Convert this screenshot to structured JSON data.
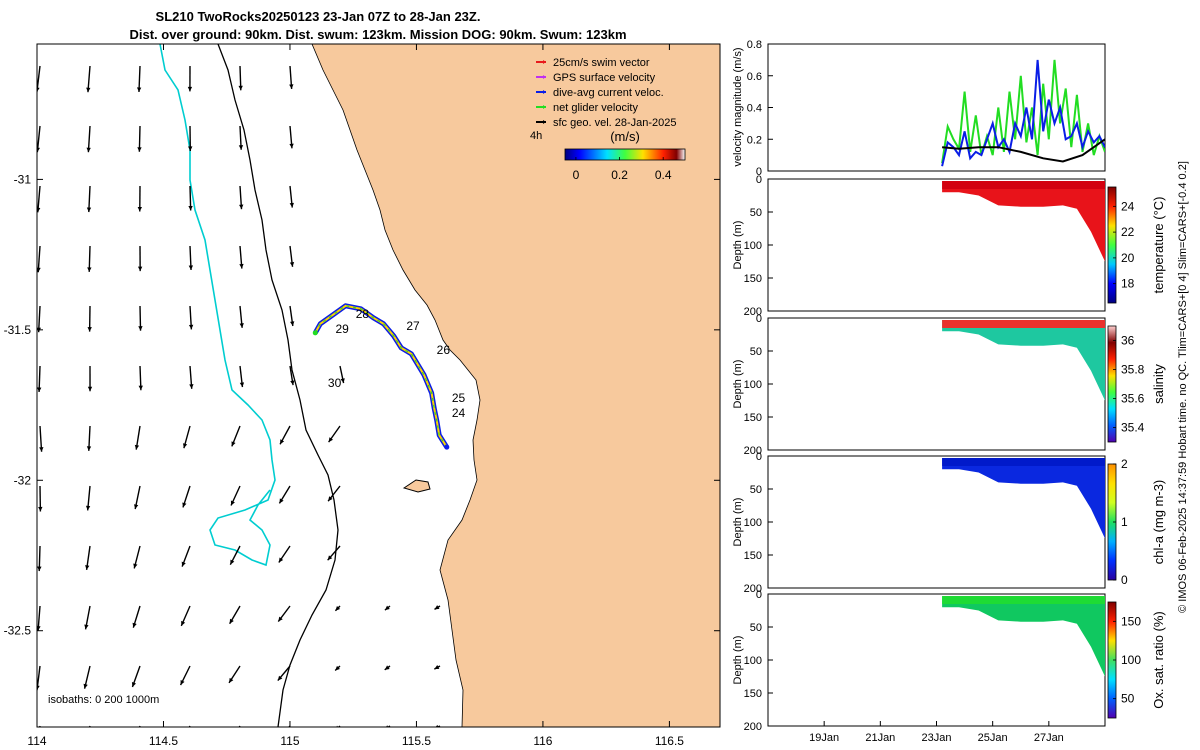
{
  "title": {
    "line1": "SL210 TwoRocks20250123 23-Jan 07Z to 28-Jan 23Z.",
    "line2": "Dist. over ground: 90km. Dist. swum: 123km. Mission DOG: 90km. Swum: 123km"
  },
  "side_caption": "© IMOS 06-Feb-2025 14:37:59 Hobart time. no QC. Tlim=CARS+[0 4] Slim=CARS+[-0.4 0.2]",
  "colors": {
    "land": "#f7c99d",
    "shelf_isobath": "#00cdd0",
    "swim_vector": "#e8191c",
    "gps_surface": "#c030f0",
    "dive_avg": "#0a1ee6",
    "net_glider": "#22dd22",
    "geo_vel": "#000000"
  },
  "chart_data": [
    {
      "type": "map",
      "name": "glider track map",
      "xlim": [
        114.0,
        116.7
      ],
      "ylim": [
        -32.82,
        -30.55
      ],
      "x_ticks": [
        114,
        114.5,
        115,
        115.5,
        116,
        116.5
      ],
      "x_tick_labels": [
        "114",
        "114.5",
        "115",
        "115.5",
        "116",
        "116.5"
      ],
      "y_ticks": [
        -31,
        -31.5,
        -32,
        -32.5
      ],
      "y_tick_labels": [
        "-31",
        "-31.5",
        "-32",
        "-32.5"
      ],
      "legend": {
        "items": [
          "25cm/s swim vector",
          "GPS surface velocity",
          "dive-avg current veloc.",
          "net glider velocity",
          "sfc geo. vel. 28-Jan-2025"
        ],
        "interval": "4h",
        "colorbar_title": "(m/s)",
        "colorbar_ticks": [
          "0",
          "0.2",
          "0.4"
        ],
        "colorbar_range": [
          -0.05,
          0.5
        ]
      },
      "isobath_label": "isobaths: 0   200  1000m",
      "day_labels": [
        {
          "text": "24",
          "lon": 115.64,
          "lat": -31.79
        },
        {
          "text": "25",
          "lon": 115.64,
          "lat": -31.74
        },
        {
          "text": "26",
          "lon": 115.58,
          "lat": -31.58
        },
        {
          "text": "27",
          "lon": 115.46,
          "lat": -31.5
        },
        {
          "text": "28",
          "lon": 115.26,
          "lat": -31.46
        },
        {
          "text": "29",
          "lon": 115.18,
          "lat": -31.51
        },
        {
          "text": "30",
          "lon": 115.15,
          "lat": -31.69
        }
      ],
      "track": [
        [
          115.62,
          -31.89
        ],
        [
          115.59,
          -31.85
        ],
        [
          115.58,
          -31.8
        ],
        [
          115.57,
          -31.76
        ],
        [
          115.56,
          -31.71
        ],
        [
          115.53,
          -31.65
        ],
        [
          115.48,
          -31.58
        ],
        [
          115.44,
          -31.56
        ],
        [
          115.41,
          -31.52
        ],
        [
          115.37,
          -31.48
        ],
        [
          115.33,
          -31.46
        ],
        [
          115.28,
          -31.43
        ],
        [
          115.22,
          -31.42
        ],
        [
          115.17,
          -31.45
        ],
        [
          115.12,
          -31.48
        ],
        [
          115.1,
          -31.51
        ]
      ]
    },
    {
      "type": "line",
      "name": "velocity magnitude",
      "ylabel": "velocity magnitude (m/s)",
      "ylim": [
        0,
        0.8
      ],
      "y_ticks": [
        "0",
        "0.2",
        "0.4",
        "0.6",
        "0.8"
      ],
      "xlim": [
        17.0,
        29.0
      ],
      "series": [
        {
          "name": "net glider velocity",
          "color": "#22dd22",
          "x": [
            23.2,
            23.4,
            23.6,
            23.8,
            24.0,
            24.2,
            24.4,
            24.6,
            24.8,
            25.0,
            25.2,
            25.4,
            25.6,
            25.8,
            26.0,
            26.2,
            26.4,
            26.6,
            26.8,
            27.0,
            27.2,
            27.4,
            27.6,
            27.8,
            28.0,
            28.2,
            28.4,
            28.6,
            28.8,
            29.0
          ],
          "values": [
            0.05,
            0.28,
            0.2,
            0.14,
            0.5,
            0.12,
            0.35,
            0.1,
            0.22,
            0.1,
            0.4,
            0.12,
            0.5,
            0.2,
            0.6,
            0.18,
            0.4,
            0.1,
            0.55,
            0.2,
            0.7,
            0.3,
            0.52,
            0.15,
            0.48,
            0.12,
            0.3,
            0.1,
            0.22,
            0.12
          ]
        },
        {
          "name": "dive-avg current veloc.",
          "color": "#0a1ee6",
          "x": [
            23.2,
            23.4,
            23.6,
            23.8,
            24.0,
            24.2,
            24.4,
            24.6,
            24.8,
            25.0,
            25.2,
            25.4,
            25.6,
            25.8,
            26.0,
            26.2,
            26.4,
            26.6,
            26.8,
            27.0,
            27.2,
            27.4,
            27.6,
            27.8,
            28.0,
            28.2,
            28.4,
            28.6,
            28.8,
            29.0
          ],
          "values": [
            0.03,
            0.18,
            0.15,
            0.1,
            0.25,
            0.08,
            0.12,
            0.1,
            0.2,
            0.3,
            0.15,
            0.2,
            0.12,
            0.3,
            0.22,
            0.4,
            0.2,
            0.7,
            0.25,
            0.45,
            0.3,
            0.4,
            0.2,
            0.22,
            0.3,
            0.15,
            0.25,
            0.18,
            0.22,
            0.15
          ]
        },
        {
          "name": "sfc geo. vel.",
          "color": "#000000",
          "x": [
            23.2,
            23.8,
            24.5,
            25.2,
            26.0,
            26.8,
            27.5,
            28.2,
            29.0
          ],
          "values": [
            0.15,
            0.14,
            0.15,
            0.15,
            0.12,
            0.08,
            0.06,
            0.1,
            0.2
          ]
        }
      ]
    },
    {
      "type": "heatmap",
      "name": "temperature section",
      "ylabel": "Depth (m)",
      "ylim": [
        200,
        0
      ],
      "y_ticks": [
        "0",
        "50",
        "100",
        "150",
        "200"
      ],
      "colorbar_label": "temperature (°C)",
      "colorbar_ticks": [
        "18",
        "20",
        "22",
        "24"
      ],
      "colorbar_range": [
        16.5,
        25.5
      ],
      "x_days": [
        23.2,
        23.8,
        24.5,
        25.2,
        26.0,
        26.8,
        27.5,
        28.0,
        28.5,
        29.0
      ],
      "max_depth": [
        20,
        20,
        25,
        40,
        42,
        42,
        40,
        45,
        80,
        125
      ],
      "typical_value": 24.8
    },
    {
      "type": "heatmap",
      "name": "salinity section",
      "ylabel": "Depth (m)",
      "ylim": [
        200,
        0
      ],
      "y_ticks": [
        "0",
        "50",
        "100",
        "150",
        "200"
      ],
      "colorbar_label": "salinity",
      "colorbar_ticks": [
        "35.4",
        "35.6",
        "35.8",
        "36"
      ],
      "colorbar_range": [
        35.3,
        36.1
      ],
      "x_days": [
        23.2,
        23.8,
        24.5,
        25.2,
        26.0,
        26.8,
        27.5,
        28.0,
        28.5,
        29.0
      ],
      "max_depth": [
        20,
        20,
        25,
        40,
        42,
        42,
        40,
        45,
        80,
        125
      ],
      "typical_value": 35.7
    },
    {
      "type": "heatmap",
      "name": "chl-a section",
      "ylabel": "Depth (m)",
      "ylim": [
        200,
        0
      ],
      "y_ticks": [
        "0",
        "50",
        "100",
        "150",
        "200"
      ],
      "colorbar_label": "chl-a (mg m-3)",
      "colorbar_ticks": [
        "0",
        "1",
        "2"
      ],
      "colorbar_range": [
        0,
        2
      ],
      "x_days": [
        23.2,
        23.8,
        24.5,
        25.2,
        26.0,
        26.8,
        27.5,
        28.0,
        28.5,
        29.0
      ],
      "max_depth": [
        20,
        20,
        25,
        40,
        42,
        42,
        40,
        45,
        80,
        125
      ],
      "typical_value": 0.2
    },
    {
      "type": "heatmap",
      "name": "oxygen saturation section",
      "ylabel": "Depth (m)",
      "ylim": [
        200,
        0
      ],
      "y_ticks": [
        "0",
        "50",
        "100",
        "150",
        "200"
      ],
      "colorbar_label": "Ox. sat. ratio (%)",
      "colorbar_ticks": [
        "50",
        "100",
        "150"
      ],
      "colorbar_range": [
        25,
        175
      ],
      "x_days": [
        23.2,
        23.8,
        24.5,
        25.2,
        26.0,
        26.8,
        27.5,
        28.0,
        28.5,
        29.0
      ],
      "max_depth": [
        20,
        20,
        25,
        40,
        42,
        42,
        40,
        45,
        80,
        125
      ],
      "typical_value": 105,
      "x_ticks": [
        19,
        21,
        23,
        25,
        27
      ],
      "x_tick_labels": [
        "19Jan",
        "21Jan",
        "23Jan",
        "25Jan",
        "27Jan"
      ]
    }
  ]
}
